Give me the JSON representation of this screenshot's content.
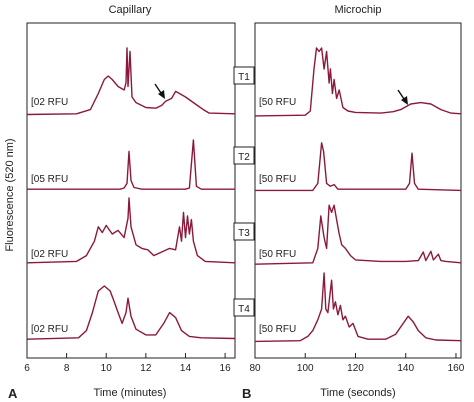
{
  "ylabel": "Fluorescence (520 nm)",
  "panel_letters": [
    "A",
    "B"
  ],
  "chart_data": [
    {
      "type": "line",
      "title": "Capillary",
      "xlabel": "Time (minutes)",
      "xlim": [
        6,
        16.5
      ],
      "x_ticks": [
        "6",
        "8",
        "10",
        "12",
        "14",
        "16"
      ],
      "x_tick_values": [
        6,
        8,
        10,
        12,
        14,
        16
      ],
      "scale_labels": [
        "[02 RFU",
        "[05 RFU",
        "[02 RFU",
        "[02 RFU"
      ],
      "series": [
        {
          "name": "T1",
          "points": [
            [
              6,
              0.05
            ],
            [
              8.5,
              0.06
            ],
            [
              9.2,
              0.12
            ],
            [
              9.6,
              0.35
            ],
            [
              9.9,
              0.55
            ],
            [
              10.1,
              0.6
            ],
            [
              10.3,
              0.55
            ],
            [
              10.6,
              0.45
            ],
            [
              10.9,
              0.4
            ],
            [
              11.0,
              0.5
            ],
            [
              11.05,
              1.0
            ],
            [
              11.1,
              0.45
            ],
            [
              11.2,
              0.95
            ],
            [
              11.3,
              0.3
            ],
            [
              11.5,
              0.22
            ],
            [
              12.0,
              0.15
            ],
            [
              12.5,
              0.14
            ],
            [
              12.8,
              0.18
            ],
            [
              13.0,
              0.24
            ],
            [
              13.3,
              0.28
            ],
            [
              13.5,
              0.38
            ],
            [
              13.7,
              0.35
            ],
            [
              14.0,
              0.3
            ],
            [
              14.5,
              0.2
            ],
            [
              14.9,
              0.12
            ],
            [
              15.2,
              0.07
            ],
            [
              16.5,
              0.06
            ]
          ]
        },
        {
          "name": "T2",
          "points": [
            [
              6,
              0.1
            ],
            [
              10.7,
              0.1
            ],
            [
              10.9,
              0.12
            ],
            [
              11.05,
              0.2
            ],
            [
              11.15,
              0.75
            ],
            [
              11.25,
              0.25
            ],
            [
              11.4,
              0.13
            ],
            [
              11.8,
              0.1
            ],
            [
              14.0,
              0.1
            ],
            [
              14.2,
              0.12
            ],
            [
              14.4,
              0.95
            ],
            [
              14.55,
              0.15
            ],
            [
              14.8,
              0.1
            ],
            [
              16.5,
              0.1
            ]
          ]
        },
        {
          "name": "T3",
          "points": [
            [
              6,
              0.1
            ],
            [
              8.5,
              0.12
            ],
            [
              9.0,
              0.2
            ],
            [
              9.4,
              0.4
            ],
            [
              9.6,
              0.6
            ],
            [
              9.8,
              0.52
            ],
            [
              10.0,
              0.62
            ],
            [
              10.3,
              0.5
            ],
            [
              10.6,
              0.55
            ],
            [
              10.9,
              0.45
            ],
            [
              11.1,
              0.72
            ],
            [
              11.15,
              1.0
            ],
            [
              11.25,
              0.6
            ],
            [
              11.5,
              0.35
            ],
            [
              11.8,
              0.3
            ],
            [
              12.1,
              0.28
            ],
            [
              12.4,
              0.2
            ],
            [
              12.8,
              0.25
            ],
            [
              13.2,
              0.3
            ],
            [
              13.5,
              0.28
            ],
            [
              13.7,
              0.6
            ],
            [
              13.8,
              0.4
            ],
            [
              13.9,
              0.8
            ],
            [
              14.0,
              0.45
            ],
            [
              14.1,
              0.75
            ],
            [
              14.2,
              0.5
            ],
            [
              14.3,
              0.7
            ],
            [
              14.4,
              0.4
            ],
            [
              14.6,
              0.2
            ],
            [
              15.0,
              0.12
            ],
            [
              16.5,
              0.1
            ]
          ]
        },
        {
          "name": "T4",
          "points": [
            [
              6,
              0.08
            ],
            [
              8.6,
              0.1
            ],
            [
              9.0,
              0.2
            ],
            [
              9.3,
              0.45
            ],
            [
              9.6,
              0.75
            ],
            [
              9.9,
              0.82
            ],
            [
              10.2,
              0.75
            ],
            [
              10.4,
              0.6
            ],
            [
              10.6,
              0.45
            ],
            [
              10.8,
              0.3
            ],
            [
              11.0,
              0.45
            ],
            [
              11.1,
              0.65
            ],
            [
              11.25,
              0.4
            ],
            [
              11.5,
              0.22
            ],
            [
              12.0,
              0.14
            ],
            [
              12.5,
              0.14
            ],
            [
              12.9,
              0.3
            ],
            [
              13.2,
              0.45
            ],
            [
              13.5,
              0.38
            ],
            [
              13.8,
              0.2
            ],
            [
              14.2,
              0.12
            ],
            [
              14.8,
              0.1
            ],
            [
              16.5,
              0.09
            ]
          ]
        }
      ]
    },
    {
      "type": "line",
      "title": "Microchip",
      "xlabel": "Time (seconds)",
      "xlim": [
        80,
        162
      ],
      "x_ticks": [
        "80",
        "100",
        "120",
        "140",
        "160"
      ],
      "x_tick_values": [
        80,
        100,
        120,
        140,
        160
      ],
      "scale_labels": [
        "[50 RFU",
        "[50 RFU",
        "[50 RFU",
        "[50 RFU"
      ],
      "series": [
        {
          "name": "T1",
          "points": [
            [
              80,
              0.03
            ],
            [
              100,
              0.04
            ],
            [
              102,
              0.1
            ],
            [
              103.5,
              0.7
            ],
            [
              104.5,
              1.0
            ],
            [
              105.5,
              0.95
            ],
            [
              106.5,
              1.0
            ],
            [
              107.5,
              0.7
            ],
            [
              108.5,
              0.95
            ],
            [
              109.5,
              0.5
            ],
            [
              110,
              0.7
            ],
            [
              110.8,
              0.35
            ],
            [
              111.5,
              0.55
            ],
            [
              112.5,
              0.28
            ],
            [
              113.5,
              0.4
            ],
            [
              115,
              0.15
            ],
            [
              117,
              0.1
            ],
            [
              120,
              0.08
            ],
            [
              130,
              0.07
            ],
            [
              135,
              0.09
            ],
            [
              138,
              0.12
            ],
            [
              142,
              0.2
            ],
            [
              146,
              0.22
            ],
            [
              150,
              0.2
            ],
            [
              154,
              0.12
            ],
            [
              158,
              0.07
            ],
            [
              162,
              0.06
            ]
          ]
        },
        {
          "name": "T2",
          "points": [
            [
              80,
              0.08
            ],
            [
              103,
              0.08
            ],
            [
              105,
              0.2
            ],
            [
              106.5,
              0.9
            ],
            [
              107.3,
              0.75
            ],
            [
              108.5,
              0.2
            ],
            [
              110,
              0.15
            ],
            [
              111.5,
              0.18
            ],
            [
              113,
              0.1
            ],
            [
              140,
              0.1
            ],
            [
              141.5,
              0.2
            ],
            [
              142.5,
              0.72
            ],
            [
              143.5,
              0.2
            ],
            [
              145,
              0.1
            ],
            [
              162,
              0.08
            ]
          ]
        },
        {
          "name": "T3",
          "points": [
            [
              80,
              0.08
            ],
            [
              103,
              0.1
            ],
            [
              105,
              0.3
            ],
            [
              106.2,
              0.75
            ],
            [
              107.5,
              0.45
            ],
            [
              108.5,
              0.3
            ],
            [
              109.5,
              0.9
            ],
            [
              110.5,
              0.8
            ],
            [
              111.5,
              0.9
            ],
            [
              112.5,
              0.7
            ],
            [
              113.5,
              0.5
            ],
            [
              114.5,
              0.35
            ],
            [
              116,
              0.3
            ],
            [
              118,
              0.2
            ],
            [
              120,
              0.14
            ],
            [
              130,
              0.12
            ],
            [
              140,
              0.12
            ],
            [
              145,
              0.13
            ],
            [
              147,
              0.25
            ],
            [
              148,
              0.13
            ],
            [
              150,
              0.26
            ],
            [
              151,
              0.14
            ],
            [
              153,
              0.22
            ],
            [
              154,
              0.13
            ],
            [
              156,
              0.12
            ],
            [
              162,
              0.1
            ]
          ]
        },
        {
          "name": "T4",
          "points": [
            [
              80,
              0.05
            ],
            [
              98,
              0.06
            ],
            [
              101,
              0.12
            ],
            [
              103,
              0.2
            ],
            [
              105,
              0.35
            ],
            [
              106.5,
              0.5
            ],
            [
              107.5,
              1.0
            ],
            [
              108.2,
              0.5
            ],
            [
              109,
              0.45
            ],
            [
              110.5,
              0.9
            ],
            [
              111.2,
              0.5
            ],
            [
              112,
              0.6
            ],
            [
              113,
              0.42
            ],
            [
              114,
              0.55
            ],
            [
              115,
              0.35
            ],
            [
              116,
              0.4
            ],
            [
              117.5,
              0.25
            ],
            [
              119,
              0.3
            ],
            [
              121,
              0.12
            ],
            [
              125,
              0.08
            ],
            [
              132,
              0.08
            ],
            [
              136,
              0.15
            ],
            [
              139,
              0.3
            ],
            [
              141,
              0.4
            ],
            [
              143,
              0.32
            ],
            [
              145,
              0.2
            ],
            [
              148,
              0.1
            ],
            [
              152,
              0.07
            ],
            [
              162,
              0.06
            ]
          ]
        }
      ]
    }
  ]
}
